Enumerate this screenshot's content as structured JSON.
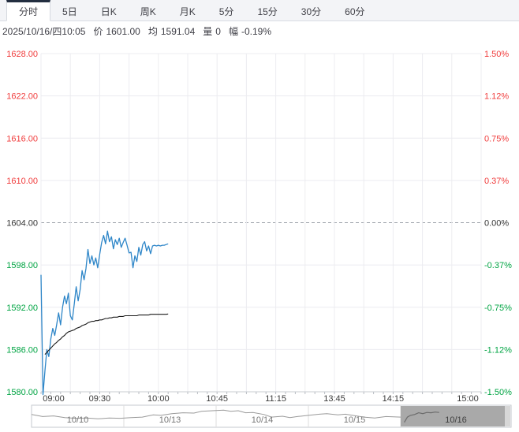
{
  "tabs": {
    "items": [
      {
        "label": "分时",
        "active": true
      },
      {
        "label": "5日",
        "active": false
      },
      {
        "label": "日K",
        "active": false
      },
      {
        "label": "周K",
        "active": false
      },
      {
        "label": "月K",
        "active": false
      },
      {
        "label": "5分",
        "active": false
      },
      {
        "label": "15分",
        "active": false
      },
      {
        "label": "30分",
        "active": false
      },
      {
        "label": "60分",
        "active": false
      }
    ]
  },
  "status": {
    "datetime": "2025/10/16/四10:05",
    "price_label": "价",
    "price": "1601.00",
    "avg_label": "均",
    "avg": "1591.04",
    "volume_label": "量",
    "volume": "0",
    "change_label": "幅",
    "change": "-0.19%"
  },
  "colors": {
    "up": "#f03c3c",
    "down": "#00a443",
    "flat": "#333333",
    "price_line": "#2e86c8",
    "avg_line": "#1a1a1a",
    "grid": "#ececf0",
    "prev_close_line": "#9aa0a8",
    "axis_line": "#c8ccd2",
    "nav_border": "#c6cacf",
    "nav_line": "#9a9a9a",
    "nav_spark": "#6b6b6b",
    "nav_label": "#767676",
    "nav_selected_label": "#3e3e3e",
    "selection_fill": "#a9a9a9",
    "selection_sliver": "#d7d7d7",
    "x_label": "#3a3a3a"
  },
  "chart_data": {
    "type": "line",
    "title": "分时 (intraday) price chart, 2025/10/16",
    "prev_close": 1604.0,
    "ylim": [
      1580,
      1628
    ],
    "ylim_right_pct": [
      -1.5,
      1.5
    ],
    "grid": true,
    "legend_position": "none",
    "session_minutes": 225,
    "x_grid_step_minutes": 15,
    "x_unit": "minutes since 09:00, trading breaks removed",
    "y_ticks_left": [
      {
        "label": "1628.00",
        "tone": "up"
      },
      {
        "label": "1622.00",
        "tone": "up"
      },
      {
        "label": "1616.00",
        "tone": "up"
      },
      {
        "label": "1610.00",
        "tone": "up"
      },
      {
        "label": "1604.00",
        "tone": "flat"
      },
      {
        "label": "1598.00",
        "tone": "down"
      },
      {
        "label": "1592.00",
        "tone": "down"
      },
      {
        "label": "1586.00",
        "tone": "down"
      },
      {
        "label": "1580.00",
        "tone": "down"
      }
    ],
    "y_ticks_right": [
      {
        "label": "1.50%",
        "tone": "up"
      },
      {
        "label": "1.12%",
        "tone": "up"
      },
      {
        "label": "0.75%",
        "tone": "up"
      },
      {
        "label": "0.37%",
        "tone": "up"
      },
      {
        "label": "0.00%",
        "tone": "flat"
      },
      {
        "label": "-0.37%",
        "tone": "down"
      },
      {
        "label": "-0.75%",
        "tone": "down"
      },
      {
        "label": "-1.12%",
        "tone": "down"
      },
      {
        "label": "-1.50%",
        "tone": "down"
      }
    ],
    "x_ticks": [
      {
        "label": "09:00",
        "minute": 0
      },
      {
        "label": "09:30",
        "minute": 30
      },
      {
        "label": "10:00",
        "minute": 60
      },
      {
        "label": "10:45",
        "minute": 90
      },
      {
        "label": "11:15",
        "minute": 120
      },
      {
        "label": "13:45",
        "minute": 150
      },
      {
        "label": "14:15",
        "minute": 180
      },
      {
        "label": "15:00",
        "minute": 225
      }
    ],
    "series": [
      {
        "name": "price",
        "color": "#2e86c8",
        "width": 1.3,
        "values": [
          1596.6,
          1579.6,
          1583.0,
          1586.0,
          1585.0,
          1587.5,
          1589.0,
          1588.0,
          1589.5,
          1591.2,
          1589.5,
          1592.0,
          1593.6,
          1592.5,
          1594.0,
          1590.8,
          1590.2,
          1592.5,
          1594.9,
          1592.9,
          1594.5,
          1597.2,
          1595.9,
          1597.5,
          1600.2,
          1598.2,
          1599.3,
          1598.0,
          1599.0,
          1597.6,
          1599.5,
          1601.2,
          1602.2,
          1601.0,
          1602.8,
          1601.3,
          1602.0,
          1600.3,
          1601.6,
          1600.9,
          1601.8,
          1600.5,
          1601.2,
          1601.8,
          1600.8,
          1599.7,
          1599.8,
          1597.6,
          1599.3,
          1598.5,
          1600.5,
          1599.4,
          1600.9,
          1601.3,
          1600.0,
          1600.7,
          1599.6,
          1600.7,
          1600.8,
          1600.7,
          1600.8,
          1600.7,
          1600.8,
          1600.8,
          1600.9,
          1601.0
        ]
      },
      {
        "name": "average",
        "color": "#1a1a1a",
        "width": 1.1,
        "values": [
          null,
          null,
          1585.3,
          1585.6,
          1585.9,
          1586.2,
          1586.5,
          1586.8,
          1587.0,
          1587.3,
          1587.5,
          1587.8,
          1588.0,
          1588.3,
          1588.5,
          1588.6,
          1588.7,
          1588.8,
          1589.0,
          1589.1,
          1589.2,
          1589.4,
          1589.5,
          1589.6,
          1589.8,
          1589.9,
          1590.0,
          1590.0,
          1590.1,
          1590.1,
          1590.2,
          1590.2,
          1590.3,
          1590.4,
          1590.4,
          1590.5,
          1590.5,
          1590.6,
          1590.6,
          1590.6,
          1590.7,
          1590.7,
          1590.7,
          1590.8,
          1590.8,
          1590.8,
          1590.8,
          1590.8,
          1590.8,
          1590.8,
          1590.9,
          1590.9,
          1590.9,
          1590.9,
          1590.9,
          1590.9,
          1591.0,
          1591.0,
          1591.0,
          1591.0,
          1591.0,
          1591.0,
          1591.0,
          1591.0,
          1591.0,
          1591.04
        ]
      }
    ]
  },
  "navigator": {
    "days": [
      {
        "label": "10/10",
        "selected": false
      },
      {
        "label": "10/13",
        "selected": false
      },
      {
        "label": "10/14",
        "selected": false
      },
      {
        "label": "10/15",
        "selected": false
      },
      {
        "label": "10/16",
        "selected": true
      }
    ],
    "overview_points": [
      [
        0.0,
        0.4
      ],
      [
        0.03,
        0.52
      ],
      [
        0.06,
        0.48
      ],
      [
        0.09,
        0.58
      ],
      [
        0.12,
        0.62
      ],
      [
        0.15,
        0.6
      ],
      [
        0.18,
        0.65
      ],
      [
        0.21,
        0.6
      ],
      [
        0.24,
        0.62
      ],
      [
        0.27,
        0.58
      ],
      [
        0.3,
        0.55
      ],
      [
        0.33,
        0.42
      ],
      [
        0.35,
        0.45
      ],
      [
        0.38,
        0.35
      ],
      [
        0.41,
        0.3
      ],
      [
        0.44,
        0.32
      ],
      [
        0.46,
        0.22
      ],
      [
        0.49,
        0.18
      ],
      [
        0.52,
        0.15
      ],
      [
        0.54,
        0.22
      ],
      [
        0.56,
        0.18
      ],
      [
        0.58,
        0.3
      ],
      [
        0.6,
        0.28
      ],
      [
        0.63,
        0.4
      ],
      [
        0.65,
        0.55
      ],
      [
        0.68,
        0.5
      ],
      [
        0.7,
        0.58
      ],
      [
        0.72,
        0.52
      ],
      [
        0.75,
        0.45
      ],
      [
        0.78,
        0.38
      ],
      [
        0.8,
        0.35
      ],
      [
        0.83,
        0.42
      ],
      [
        0.85,
        0.38
      ],
      [
        0.88,
        0.48
      ],
      [
        0.9,
        0.55
      ],
      [
        0.93,
        0.6
      ],
      [
        0.96,
        0.52
      ],
      [
        1.0,
        0.55
      ]
    ],
    "current_day_points": [
      [
        0.02,
        0.85
      ],
      [
        0.05,
        0.55
      ],
      [
        0.08,
        0.45
      ],
      [
        0.12,
        0.4
      ],
      [
        0.16,
        0.3
      ],
      [
        0.2,
        0.35
      ],
      [
        0.24,
        0.28
      ],
      [
        0.28,
        0.3
      ],
      [
        0.32,
        0.26
      ],
      [
        0.36,
        0.28
      ]
    ]
  }
}
